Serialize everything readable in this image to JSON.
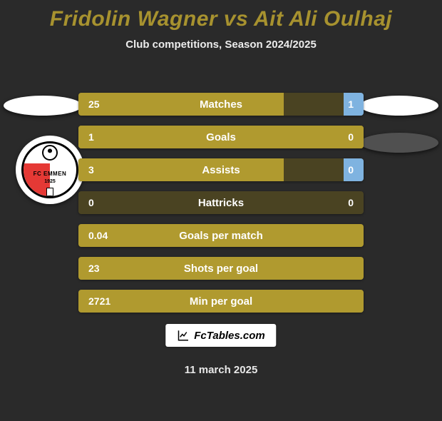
{
  "title_color": "#a7922f",
  "player_left": "Fridolin Wagner",
  "player_right": "Ait Ali Oulhaj",
  "subtitle": "Club competitions, Season 2024/2025",
  "date": "11 march 2025",
  "watermark": "FcTables.com",
  "emblem": {
    "text": "FC EMMEN",
    "year": "1925"
  },
  "colors": {
    "bar_left": "#b09a2f",
    "bar_right": "#7fb3e0",
    "bar_track": "#4a4322",
    "bar_track_full": "#b09a2f"
  },
  "rows": [
    {
      "label": "Matches",
      "left": "25",
      "right": "1",
      "left_pct": 72,
      "right_pct": 7,
      "track": "track"
    },
    {
      "label": "Goals",
      "left": "1",
      "right": "0",
      "left_pct": 100,
      "right_pct": 0,
      "track": "full"
    },
    {
      "label": "Assists",
      "left": "3",
      "right": "0",
      "left_pct": 72,
      "right_pct": 7,
      "track": "track"
    },
    {
      "label": "Hattricks",
      "left": "0",
      "right": "0",
      "left_pct": 0,
      "right_pct": 0,
      "track": "track"
    },
    {
      "label": "Goals per match",
      "left": "0.04",
      "right": "",
      "left_pct": 0,
      "right_pct": 0,
      "track": "full"
    },
    {
      "label": "Shots per goal",
      "left": "23",
      "right": "",
      "left_pct": 0,
      "right_pct": 0,
      "track": "full"
    },
    {
      "label": "Min per goal",
      "left": "2721",
      "right": "",
      "left_pct": 0,
      "right_pct": 0,
      "track": "full"
    }
  ]
}
